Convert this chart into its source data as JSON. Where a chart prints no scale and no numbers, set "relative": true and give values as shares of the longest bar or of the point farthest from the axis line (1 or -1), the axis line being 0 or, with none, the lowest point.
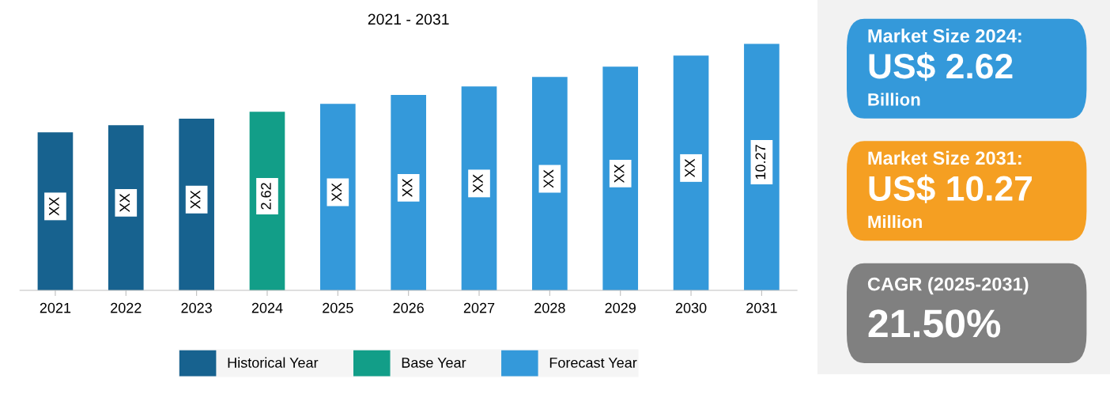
{
  "chart_data": [
    {
      "type": "bar",
      "title": "2021 - 2031",
      "relative": true,
      "categories": [
        "2021",
        "2022",
        "2023",
        "2024",
        "2025",
        "2026",
        "2027",
        "2028",
        "2029",
        "2030",
        "2031"
      ],
      "series": [
        {
          "name": "Historical Year",
          "color": "#17628f",
          "values": [
            0.641,
            0.67,
            0.696,
            null,
            null,
            null,
            null,
            null,
            null,
            null,
            null
          ]
        },
        {
          "name": "Base Year",
          "color": "#129e88",
          "values": [
            null,
            null,
            null,
            0.724,
            null,
            null,
            null,
            null,
            null,
            null,
            null
          ]
        },
        {
          "name": "Forecast Year",
          "color": "#3499da",
          "values": [
            null,
            null,
            null,
            null,
            0.756,
            0.792,
            0.827,
            0.865,
            0.907,
            0.952,
            1
          ]
        }
      ],
      "annotations": [
        "XX",
        "XX",
        "XX",
        "2.62",
        "XX",
        "XX",
        "XX",
        "XX",
        "XX",
        "XX",
        "10.27"
      ],
      "legend": "bottom",
      "grid": false
    },
    {
      "type": "other",
      "colors": [
        "#3499da",
        "#f59f22",
        "#808080"
      ],
      "annotations": [
        "Market Size 2024:",
        "US$ 2.62",
        "Billion",
        "Market Size 2031:",
        "US$ 10.27",
        "Million",
        "CAGR (2025-2031)",
        "21.50%"
      ]
    }
  ]
}
